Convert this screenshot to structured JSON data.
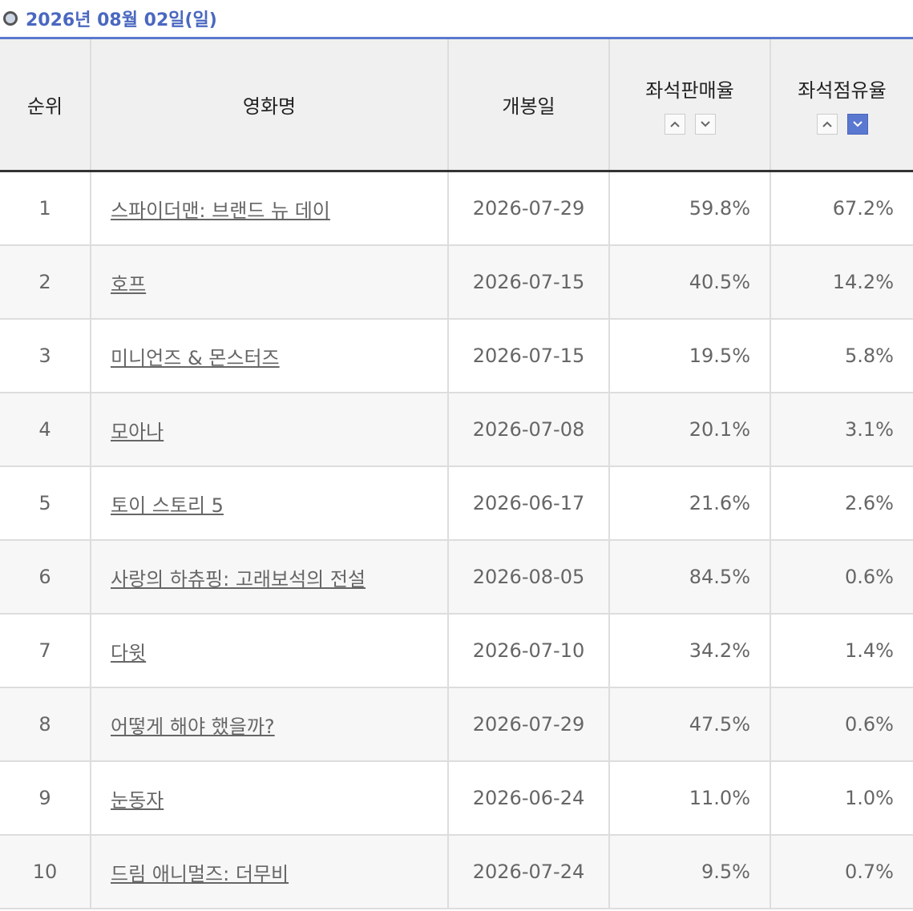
{
  "header": {
    "title": "2026년 08월 02일(일)"
  },
  "table": {
    "columns": [
      "순위",
      "영화명",
      "개봉일",
      "좌석판매율",
      "좌석점유율"
    ],
    "rows": [
      [
        "1",
        "스파이더맨: 브랜드 뉴 데이",
        "2026-07-29",
        "59.8%",
        "67.2%"
      ],
      [
        "2",
        "호프",
        "2026-07-15",
        "40.5%",
        "14.2%"
      ],
      [
        "3",
        "미니언즈 & 몬스터즈",
        "2026-07-15",
        "19.5%",
        "5.8%"
      ],
      [
        "4",
        "모아나",
        "2026-07-08",
        "20.1%",
        "3.1%"
      ],
      [
        "5",
        "토이 스토리 5",
        "2026-06-17",
        "21.6%",
        "2.6%"
      ],
      [
        "6",
        "사랑의 하츄핑: 고래보석의 전설",
        "2026-08-05",
        "84.5%",
        "0.6%"
      ],
      [
        "7",
        "다윗",
        "2026-07-10",
        "34.2%",
        "1.4%"
      ],
      [
        "8",
        "어떻게 해야 했을까?",
        "2026-07-29",
        "47.5%",
        "0.6%"
      ],
      [
        "9",
        "눈동자",
        "2026-06-24",
        "11.0%",
        "1.0%"
      ],
      [
        "10",
        "드림 애니멀즈: 더무비",
        "2026-07-24",
        "9.5%",
        "0.7%"
      ]
    ]
  }
}
